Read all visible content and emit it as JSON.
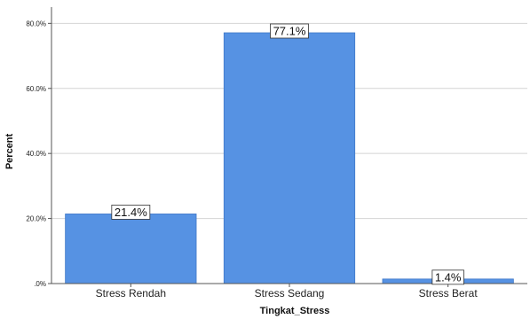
{
  "chart_data": {
    "type": "bar",
    "categories": [
      "Stress Rendah",
      "Stress Sedang",
      "Stress Berat"
    ],
    "values": [
      21.4,
      77.1,
      1.4
    ],
    "data_labels": [
      "21.4%",
      "77.1%",
      "1.4%"
    ],
    "title": "",
    "xlabel": "Tingkat_Stress",
    "ylabel": "Percent",
    "ylim": [
      0,
      85
    ],
    "yticks": [
      0,
      20,
      40,
      60,
      80
    ],
    "ytick_labels": [
      ".0%",
      "20.0%",
      "40.0%",
      "60.0%",
      "80.0%"
    ],
    "grid": true,
    "legend": "none",
    "colors": {
      "bar": "#5692e3",
      "bar_edge": "#3f78c8",
      "grid": "#d4d4d4",
      "axis": "#555555"
    }
  }
}
